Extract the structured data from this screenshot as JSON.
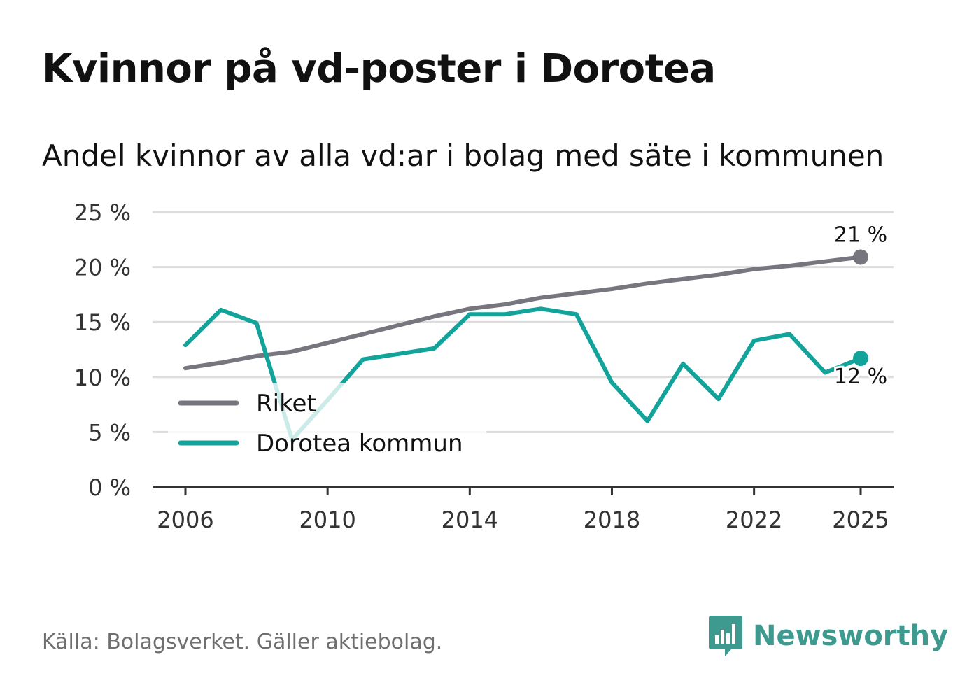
{
  "header": {
    "title": "Kvinnor på vd-poster i Dorotea",
    "subtitle": "Andel kvinnor av alla vd:ar i bolag med säte i kommunen"
  },
  "footer": {
    "source": "Källa: Bolagsverket. Gäller aktiebolag.",
    "brand": "Newsworthy"
  },
  "colors": {
    "riket": "#77767e",
    "dorotea": "#12a39b",
    "dorotea_faded": "#c6ebe8",
    "grid": "#dddddd",
    "axis": "#333333",
    "brand": "#3e9a8f"
  },
  "chart_data": {
    "type": "line",
    "title": "Kvinnor på vd-poster i Dorotea",
    "subtitle": "Andel kvinnor av alla vd:ar i bolag med säte i kommunen",
    "xlabel": "",
    "ylabel": "",
    "x": [
      2006,
      2007,
      2008,
      2009,
      2010,
      2011,
      2012,
      2013,
      2014,
      2015,
      2016,
      2017,
      2018,
      2019,
      2020,
      2021,
      2022,
      2023,
      2024,
      2025
    ],
    "xlim": [
      2006,
      2025
    ],
    "ylim": [
      0,
      25
    ],
    "y_ticks": [
      0,
      5,
      10,
      15,
      20,
      25
    ],
    "y_tick_labels": [
      "0 %",
      "5 %",
      "10 %",
      "15 %",
      "20 %",
      "25 %"
    ],
    "x_ticks": [
      2006,
      2010,
      2014,
      2018,
      2022,
      2025
    ],
    "x_tick_labels": [
      "2006",
      "2010",
      "2014",
      "2018",
      "2022",
      "2025"
    ],
    "grid": true,
    "legend_position": "bottom-left",
    "series": [
      {
        "name": "Riket",
        "color": "#77767e",
        "values": [
          10.8,
          11.3,
          11.9,
          12.3,
          13.1,
          13.9,
          14.7,
          15.5,
          16.2,
          16.6,
          17.2,
          17.6,
          18.0,
          18.5,
          18.9,
          19.3,
          19.8,
          20.1,
          20.5,
          20.9
        ],
        "end_label": "21 %"
      },
      {
        "name": "Dorotea kommun",
        "color": "#12a39b",
        "values": [
          12.9,
          16.1,
          14.9,
          4.3,
          7.9,
          11.6,
          12.1,
          12.6,
          15.7,
          15.7,
          16.2,
          15.7,
          9.5,
          6.0,
          11.2,
          8.0,
          13.3,
          13.9,
          10.4,
          11.7
        ],
        "end_label": "12 %"
      }
    ]
  }
}
